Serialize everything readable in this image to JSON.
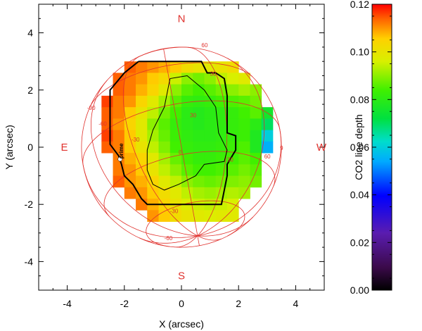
{
  "chart_data": {
    "type": "heatmap",
    "xlabel": "X (arcsec)",
    "ylabel": "Y (arcsec)",
    "xlim": [
      -5,
      5
    ],
    "ylim": [
      -5,
      5
    ],
    "x_ticks": [
      -4,
      -2,
      0,
      2,
      4
    ],
    "y_ticks": [
      -4,
      -2,
      0,
      2,
      4
    ],
    "colorbar": {
      "label": "CO2 line depth",
      "range": [
        0.0,
        0.12
      ],
      "ticks": [
        "0.00",
        "0.02",
        "0.04",
        "0.06",
        "0.08",
        "0.10",
        "0.12"
      ]
    },
    "compass": {
      "N": "N",
      "S": "S",
      "E": "E",
      "W": "W"
    },
    "disk": {
      "center": [
        0,
        0
      ],
      "radius": 3.5
    },
    "grid_labels": [
      {
        "text": "-90",
        "x": -3.3,
        "y": 1.3
      },
      {
        "text": "-60",
        "x": -2.9,
        "y": 0.75
      },
      {
        "text": "-30",
        "x": -1.75,
        "y": 0.2
      },
      {
        "text": "0",
        "x": -0.1,
        "y": -0.25
      },
      {
        "text": "30",
        "x": 0.3,
        "y": 1.05
      },
      {
        "text": "30",
        "x": 1.6,
        "y": -0.5
      },
      {
        "text": "60",
        "x": 2.9,
        "y": -0.4
      },
      {
        "text": "9",
        "x": 3.45,
        "y": -0.1
      },
      {
        "text": "60",
        "x": 0.7,
        "y": 3.5
      },
      {
        "text": "30",
        "x": 1.0,
        "y": 2.5
      },
      {
        "text": "-30",
        "x": -0.4,
        "y": -2.3
      },
      {
        "text": "-60",
        "x": -0.6,
        "y": -3.25
      }
    ],
    "marker_text": "prime",
    "cells": {
      "x0": -2.8,
      "y0": 3.4,
      "dx": 0.4,
      "dy": 0.4,
      "rows": [
        [
          null,
          null,
          null,
          null,
          null,
          null,
          null,
          null,
          null,
          null,
          null,
          null,
          null,
          null,
          null,
          null,
          null
        ],
        [
          null,
          null,
          0.114,
          0.112,
          0.11,
          0.108,
          0.106,
          0.102,
          0.1,
          0.098,
          0.1,
          0.102,
          null,
          null,
          null,
          null,
          null
        ],
        [
          null,
          0.114,
          0.112,
          0.11,
          0.106,
          0.103,
          0.095,
          0.09,
          0.088,
          0.09,
          0.094,
          0.096,
          0.098,
          null,
          null,
          null,
          null
        ],
        [
          null,
          0.114,
          0.112,
          0.108,
          0.104,
          0.098,
          0.09,
          0.086,
          0.084,
          0.086,
          0.088,
          0.09,
          0.092,
          0.09,
          null,
          null,
          null
        ],
        [
          0.116,
          0.112,
          0.11,
          0.104,
          0.098,
          0.092,
          0.086,
          0.082,
          0.081,
          0.082,
          0.084,
          0.085,
          0.086,
          0.088,
          null,
          null,
          null
        ],
        [
          0.114,
          0.112,
          0.106,
          0.1,
          0.094,
          0.088,
          0.084,
          0.08,
          0.079,
          0.08,
          0.081,
          0.082,
          0.084,
          0.086,
          0.076,
          null,
          null
        ],
        [
          0.114,
          0.11,
          0.104,
          0.098,
          0.09,
          0.086,
          0.082,
          0.08,
          0.079,
          0.08,
          0.081,
          0.082,
          0.083,
          0.08,
          0.07,
          null,
          null
        ],
        [
          0.116,
          0.112,
          0.106,
          0.098,
          0.092,
          0.087,
          0.083,
          0.081,
          0.08,
          0.08,
          0.081,
          0.082,
          0.083,
          0.078,
          0.06,
          null,
          null
        ],
        [
          0.114,
          0.112,
          0.106,
          0.1,
          0.094,
          0.089,
          0.084,
          0.082,
          0.081,
          0.081,
          0.082,
          0.083,
          0.085,
          0.078,
          0.055,
          null,
          null
        ],
        [
          null,
          0.112,
          0.108,
          0.104,
          0.098,
          0.092,
          0.087,
          0.084,
          0.082,
          0.082,
          0.083,
          0.084,
          0.086,
          0.084,
          null,
          null,
          null
        ],
        [
          null,
          0.112,
          0.11,
          0.106,
          0.1,
          0.094,
          0.09,
          0.086,
          0.084,
          0.084,
          0.085,
          0.086,
          0.088,
          0.086,
          null,
          null,
          null
        ],
        [
          null,
          0.114,
          0.11,
          0.108,
          0.104,
          0.098,
          0.094,
          0.09,
          0.088,
          0.087,
          0.088,
          0.089,
          0.09,
          0.088,
          null,
          null,
          null
        ],
        [
          null,
          null,
          0.112,
          0.11,
          0.106,
          0.102,
          0.098,
          0.094,
          0.092,
          0.091,
          0.092,
          0.093,
          0.092,
          null,
          null,
          null,
          null
        ],
        [
          null,
          null,
          null,
          0.112,
          0.108,
          0.104,
          0.1,
          0.097,
          0.095,
          0.094,
          0.095,
          0.096,
          null,
          null,
          null,
          null,
          null
        ],
        [
          null,
          null,
          null,
          null,
          0.11,
          0.106,
          0.102,
          0.1,
          0.098,
          0.097,
          0.098,
          0.098,
          null,
          null,
          null,
          null,
          null
        ]
      ]
    },
    "footprint_outline": [
      [
        -1.5,
        3.0
      ],
      [
        0.7,
        3.0
      ],
      [
        0.9,
        2.6
      ],
      [
        1.2,
        2.6
      ],
      [
        1.5,
        2.4
      ],
      [
        1.6,
        1.8
      ],
      [
        1.6,
        0.5
      ],
      [
        1.9,
        0.4
      ],
      [
        1.9,
        -0.1
      ],
      [
        1.6,
        -0.6
      ],
      [
        1.6,
        -1.0
      ],
      [
        1.4,
        -2.0
      ],
      [
        -0.2,
        -2.0
      ],
      [
        -1.2,
        -2.0
      ],
      [
        -1.4,
        -1.8
      ],
      [
        -1.7,
        -1.3
      ],
      [
        -2.0,
        -1.0
      ],
      [
        -2.1,
        -0.6
      ],
      [
        -2.2,
        -0.3
      ],
      [
        -2.5,
        0.1
      ],
      [
        -2.5,
        2.0
      ],
      [
        -2.0,
        2.6
      ],
      [
        -1.5,
        3.0
      ]
    ],
    "contour": [
      [
        -0.4,
        2.4
      ],
      [
        0.2,
        2.5
      ],
      [
        0.8,
        2.0
      ],
      [
        1.2,
        1.4
      ],
      [
        1.3,
        0.5
      ],
      [
        1.6,
        -0.1
      ],
      [
        1.5,
        -0.5
      ],
      [
        0.8,
        -0.6
      ],
      [
        0.5,
        -1.0
      ],
      [
        -0.1,
        -1.3
      ],
      [
        -0.6,
        -1.5
      ],
      [
        -1.0,
        -1.3
      ],
      [
        -1.2,
        -0.8
      ],
      [
        -1.2,
        -0.1
      ],
      [
        -1.0,
        0.6
      ],
      [
        -0.6,
        1.4
      ],
      [
        -0.4,
        2.4
      ]
    ]
  }
}
